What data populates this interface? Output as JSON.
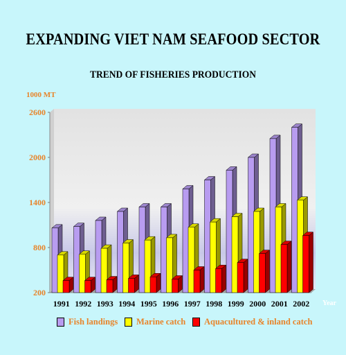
{
  "chart_data": {
    "type": "bar",
    "title": "EXPANDING VIET NAM SEAFOOD SECTOR",
    "subtitle": "TREND OF FISHERIES PRODUCTION",
    "ylabel": "1000 MT",
    "xlabel": "Year",
    "ylim": [
      200,
      2600
    ],
    "yticks": [
      200,
      800,
      1400,
      2000,
      2600
    ],
    "categories": [
      "1991",
      "1992",
      "1993",
      "1994",
      "1995",
      "1996",
      "1997",
      "1998",
      "1999",
      "2000",
      "2001",
      "2002"
    ],
    "series": [
      {
        "name": "Fish landings",
        "color": "#b89cf0",
        "values": [
          1060,
          1080,
          1160,
          1280,
          1340,
          1340,
          1580,
          1700,
          1830,
          2000,
          2250,
          2400
        ]
      },
      {
        "name": "Marine catch",
        "color": "#ffff00",
        "values": [
          700,
          710,
          790,
          860,
          900,
          930,
          1070,
          1140,
          1210,
          1280,
          1340,
          1430
        ]
      },
      {
        "name": "Aquacultured & inland catch",
        "color": "#ff0000",
        "values": [
          360,
          360,
          370,
          390,
          410,
          380,
          500,
          520,
          600,
          720,
          840,
          960
        ]
      }
    ],
    "grid": false,
    "legend_position": "bottom"
  }
}
